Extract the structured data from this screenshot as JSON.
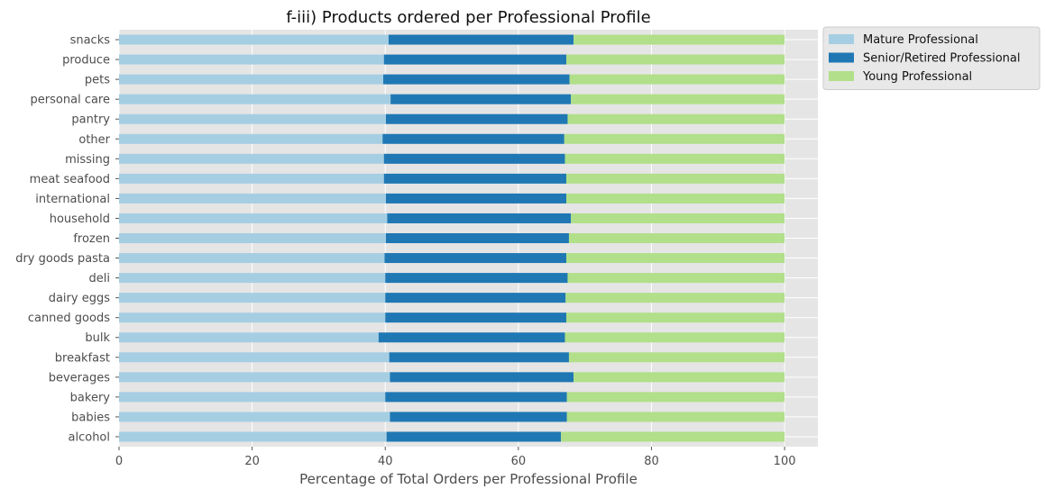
{
  "chart_data": {
    "type": "bar",
    "orientation": "horizontal",
    "stacked": true,
    "title": "f-iii) Products ordered per Professional Profile",
    "xlabel": "Percentage of Total Orders per Professional Profile",
    "ylabel": "",
    "xlim": [
      0,
      105
    ],
    "xticks": [
      0,
      20,
      40,
      60,
      80,
      100
    ],
    "grid": true,
    "legend_position": "outside-top-right",
    "categories": [
      "alcohol",
      "babies",
      "bakery",
      "beverages",
      "breakfast",
      "bulk",
      "canned goods",
      "dairy eggs",
      "deli",
      "dry goods pasta",
      "frozen",
      "household",
      "international",
      "meat seafood",
      "missing",
      "other",
      "pantry",
      "personal care",
      "pets",
      "produce",
      "snacks"
    ],
    "series": [
      {
        "name": "Mature Professional",
        "color": "#a6cee3",
        "values": [
          40.2,
          40.7,
          40.0,
          40.7,
          40.6,
          39.0,
          40.0,
          40.0,
          40.0,
          39.9,
          40.1,
          40.3,
          40.1,
          39.8,
          39.8,
          39.6,
          40.1,
          40.8,
          39.7,
          39.8,
          40.5
        ]
      },
      {
        "name": "Senior/Retired Professional",
        "color": "#1f78b4",
        "values": [
          26.2,
          26.6,
          27.3,
          27.6,
          27.0,
          28.0,
          27.2,
          27.1,
          27.4,
          27.3,
          27.5,
          27.6,
          27.1,
          27.4,
          27.2,
          27.3,
          27.3,
          27.1,
          28.0,
          27.4,
          27.8
        ]
      },
      {
        "name": "Young Professional",
        "color": "#b2df8a",
        "values": [
          33.6,
          32.7,
          32.7,
          31.7,
          32.4,
          33.0,
          32.8,
          32.9,
          32.6,
          32.8,
          32.4,
          32.1,
          32.8,
          32.8,
          33.0,
          33.1,
          32.6,
          32.1,
          32.3,
          32.8,
          31.7
        ]
      }
    ]
  }
}
